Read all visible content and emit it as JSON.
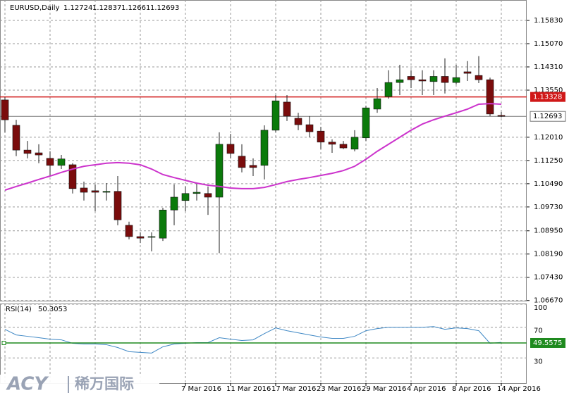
{
  "chart_data": {
    "type": "candlestick",
    "title": "EURUSD,Daily",
    "up_color": "#0b7a0b",
    "down_color": "#7a0c0c",
    "categories": [
      null,
      null,
      null,
      null,
      null,
      null,
      null,
      null,
      null,
      null,
      null,
      null,
      null,
      null,
      null,
      null,
      "7 Mar 2016",
      null,
      null,
      null,
      "11 Mar 2016",
      null,
      null,
      null,
      "17 Mar 2016",
      null,
      null,
      null,
      "23 Mar 2016",
      null,
      null,
      null,
      "29 Mar 2016",
      null,
      null,
      null,
      "4 Apr 2016",
      null,
      null,
      null,
      "8 Apr 2016",
      null,
      null,
      null,
      "14 Apr 2016"
    ],
    "open": [
      1.1323,
      1.124,
      1.1159,
      1.115,
      1.1132,
      1.1109,
      1.1111,
      1.1035,
      1.1026,
      1.1021,
      1.1024,
      1.0913,
      1.0876,
      1.0874,
      1.0871,
      1.0963,
      1.0994,
      1.1017,
      1.1017,
      1.1005,
      1.1178,
      1.1139,
      1.1109,
      1.1109,
      1.1224,
      1.1316,
      1.1263,
      1.1242,
      1.1221,
      1.1185,
      1.1178,
      1.1162,
      1.1199,
      1.1293,
      1.1334,
      1.138,
      1.14,
      1.1389,
      1.1383,
      1.14,
      1.138,
      1.1415,
      1.1403,
      1.1389,
      1.12724
    ],
    "high": [
      1.1332,
      1.1258,
      1.1189,
      1.1178,
      1.1155,
      1.1143,
      1.1116,
      1.1056,
      1.1047,
      1.1051,
      1.1074,
      1.0925,
      1.089,
      1.089,
      1.097,
      1.1047,
      1.104,
      1.1051,
      1.104,
      1.1217,
      1.1212,
      1.1178,
      1.1132,
      1.124,
      1.1339,
      1.1339,
      1.1281,
      1.127,
      1.1235,
      1.1194,
      1.1189,
      1.1224,
      1.1304,
      1.1362,
      1.142,
      1.1438,
      1.142,
      1.142,
      1.142,
      1.1459,
      1.1438,
      1.145,
      1.1466,
      1.1396,
      1.12837
    ],
    "low": [
      1.1217,
      1.1139,
      1.1132,
      1.1116,
      1.1074,
      1.1097,
      1.1017,
      1.0994,
      1.0959,
      1.0994,
      1.0913,
      1.0867,
      1.0855,
      1.0828,
      1.0862,
      1.0913,
      1.0959,
      1.0994,
      1.0947,
      1.0822,
      1.1132,
      1.1086,
      1.1074,
      1.1063,
      1.1217,
      1.1254,
      1.1224,
      1.1201,
      1.1162,
      1.115,
      1.1162,
      1.1155,
      1.1189,
      1.1281,
      1.1327,
      1.1339,
      1.1362,
      1.1339,
      1.1339,
      1.1344,
      1.1374,
      1.1385,
      1.1378,
      1.127,
      1.12661
    ],
    "close": [
      1.1258,
      1.1159,
      1.1148,
      1.1143,
      1.1109,
      1.113,
      1.1033,
      1.1021,
      1.1021,
      1.1024,
      1.0931,
      1.0876,
      1.0871,
      1.0876,
      1.0963,
      1.1005,
      1.1017,
      1.1021,
      1.1005,
      1.1178,
      1.1148,
      1.1102,
      1.1102,
      1.1224,
      1.132,
      1.127,
      1.1242,
      1.1219,
      1.1185,
      1.1178,
      1.1166,
      1.1201,
      1.1297,
      1.1327,
      1.138,
      1.1389,
      1.1389,
      1.1385,
      1.14,
      1.138,
      1.1396,
      1.141,
      1.1389,
      1.1277,
      1.12693
    ],
    "moving_average": {
      "color": "#cc33cc",
      "values": [
        1.1028,
        1.104,
        1.1051,
        1.1063,
        1.1074,
        1.1086,
        1.1097,
        1.1106,
        1.1111,
        1.1116,
        1.1118,
        1.1116,
        1.1111,
        1.1097,
        1.1079,
        1.1069,
        1.106,
        1.1051,
        1.1044,
        1.104,
        1.1035,
        1.1033,
        1.1033,
        1.1037,
        1.1046,
        1.1056,
        1.1063,
        1.1069,
        1.1076,
        1.1083,
        1.1092,
        1.1106,
        1.1129,
        1.1155,
        1.1178,
        1.1201,
        1.1224,
        1.1244,
        1.1258,
        1.127,
        1.1281,
        1.1293,
        1.1309,
        1.1311,
        1.1309
      ]
    },
    "level": {
      "value": 1.13328,
      "label": "1.13328",
      "color": "#d01818"
    },
    "ylim": [
      1.06641,
      1.16498
    ],
    "yticks": [
      {
        "value": 1.1583,
        "label": "1.15830"
      },
      {
        "value": 1.1507,
        "label": "1.15070"
      },
      {
        "value": 1.1431,
        "label": "1.14310"
      },
      {
        "value": 1.1355,
        "label": "1.13550"
      },
      {
        "value": 1.1201,
        "label": "1.12010"
      },
      {
        "value": 1.1125,
        "label": "1.11250"
      },
      {
        "value": 1.1049,
        "label": "1.10490"
      },
      {
        "value": 1.0973,
        "label": "1.09730"
      },
      {
        "value": 1.0895,
        "label": "1.08950"
      },
      {
        "value": 1.0819,
        "label": "1.08190"
      },
      {
        "value": 1.0743,
        "label": "1.07430"
      },
      {
        "value": 1.0667,
        "label": "1.06670"
      }
    ],
    "grid": true,
    "rsi": {
      "label": "RSI(14)",
      "color": "#3f88c5",
      "values": [
        67.3,
        60.0,
        58.2,
        56.4,
        54.5,
        53.6,
        49.1,
        48.2,
        48.2,
        47.3,
        43.6,
        38.2,
        37.3,
        36.4,
        44.5,
        48.2,
        49.1,
        50,
        50,
        56.4,
        54.5,
        52.7,
        53.6,
        61.8,
        69.1,
        65.5,
        62.7,
        60,
        57.3,
        55.5,
        55.5,
        58.2,
        65.5,
        68.2,
        70,
        70,
        70,
        70,
        70.9,
        67.3,
        69.1,
        68.2,
        65.5,
        49.1,
        50.3053
      ],
      "ylim": [
        0,
        100
      ],
      "yticks": [
        100,
        70,
        30
      ],
      "level": 49.5575,
      "level_color": "#1f8a1f"
    },
    "watermark": "ACY",
    "watermark_cn": "稀万国际"
  }
}
